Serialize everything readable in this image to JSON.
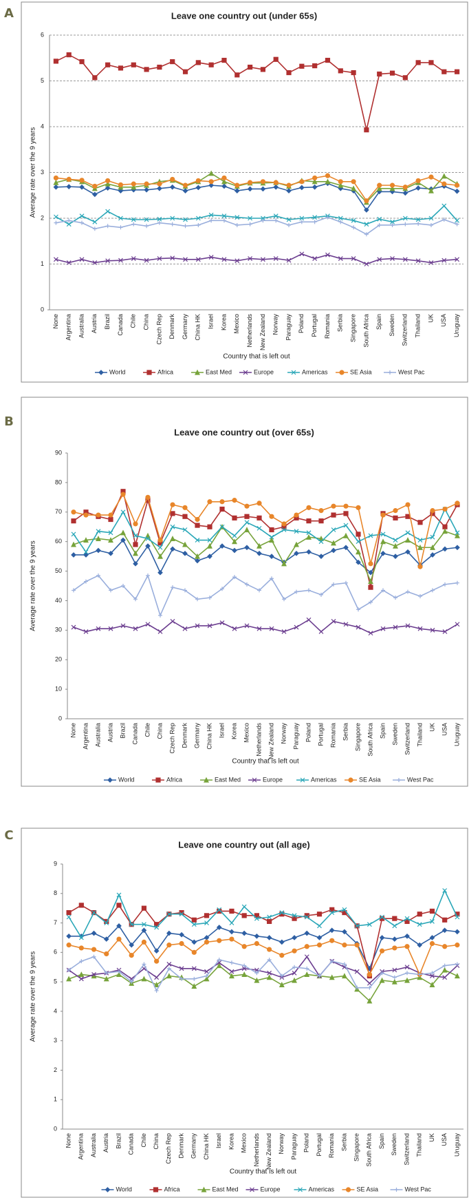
{
  "panels": [
    "A",
    "B",
    "C"
  ],
  "chart_data": [
    {
      "type": "line",
      "title": "Leave one country out (under 65s)",
      "x_label": "Country that is left out",
      "y_label": "Average rate over the 9 years",
      "categories": [
        "None",
        "Argentina",
        "Australia",
        "Austria",
        "Brazil",
        "Canada",
        "Chile",
        "China",
        "Czech Rep",
        "Denmark",
        "Germany",
        "China HK",
        "Israel",
        "Korea",
        "Mexico",
        "Netherlands",
        "New Zealand",
        "Norway",
        "Paraguay",
        "Poland",
        "Portugal",
        "Romania",
        "Serbia",
        "Singapore",
        "South Africa",
        "Spain",
        "Sweden",
        "Switzerland",
        "Thailand",
        "UK",
        "USA",
        "Uruguay"
      ],
      "ylim": [
        0,
        6
      ],
      "yticks": [
        0,
        1,
        2,
        3,
        4,
        5,
        6
      ],
      "grid": true,
      "legend": "bottom",
      "series": [
        {
          "name": "World",
          "color": "#2e5fa3",
          "values": [
            2.68,
            2.69,
            2.68,
            2.52,
            2.66,
            2.6,
            2.62,
            2.62,
            2.65,
            2.68,
            2.6,
            2.67,
            2.72,
            2.7,
            2.6,
            2.64,
            2.64,
            2.68,
            2.6,
            2.67,
            2.68,
            2.76,
            2.65,
            2.6,
            2.18,
            2.58,
            2.58,
            2.55,
            2.66,
            2.64,
            2.7,
            2.59
          ]
        },
        {
          "name": "Africa",
          "color": "#b03030",
          "values": [
            5.43,
            5.57,
            5.42,
            5.07,
            5.35,
            5.28,
            5.35,
            5.25,
            5.3,
            5.42,
            5.2,
            5.4,
            5.35,
            5.45,
            5.13,
            5.3,
            5.25,
            5.47,
            5.18,
            5.32,
            5.33,
            5.45,
            5.22,
            5.18,
            3.93,
            5.15,
            5.17,
            5.07,
            5.4,
            5.4,
            5.2,
            5.2
          ]
        },
        {
          "name": "East Med",
          "color": "#77a33b",
          "values": [
            2.78,
            2.85,
            2.8,
            2.65,
            2.75,
            2.68,
            2.68,
            2.72,
            2.8,
            2.83,
            2.7,
            2.8,
            2.98,
            2.8,
            2.7,
            2.77,
            2.77,
            2.78,
            2.7,
            2.82,
            2.8,
            2.8,
            2.72,
            2.65,
            2.35,
            2.65,
            2.65,
            2.65,
            2.78,
            2.6,
            2.92,
            2.75
          ]
        },
        {
          "name": "Europe",
          "color": "#6b3d8f",
          "values": [
            1.1,
            1.03,
            1.1,
            1.03,
            1.07,
            1.08,
            1.12,
            1.08,
            1.12,
            1.13,
            1.1,
            1.1,
            1.15,
            1.1,
            1.07,
            1.12,
            1.1,
            1.12,
            1.08,
            1.22,
            1.12,
            1.2,
            1.12,
            1.12,
            1.0,
            1.1,
            1.12,
            1.1,
            1.07,
            1.03,
            1.08,
            1.1
          ]
        },
        {
          "name": "Americas",
          "color": "#2aa7b8",
          "values": [
            2.03,
            1.87,
            2.05,
            1.92,
            2.15,
            2.0,
            1.97,
            1.97,
            1.98,
            2.0,
            1.97,
            2.0,
            2.07,
            2.05,
            2.02,
            2.0,
            2.0,
            2.05,
            1.97,
            2.0,
            2.02,
            2.05,
            2.0,
            1.95,
            1.87,
            1.98,
            1.92,
            2.0,
            1.97,
            2.0,
            2.27,
            1.95
          ]
        },
        {
          "name": "SE Asia",
          "color": "#e8862a",
          "values": [
            2.88,
            2.85,
            2.83,
            2.7,
            2.82,
            2.73,
            2.75,
            2.75,
            2.75,
            2.85,
            2.72,
            2.82,
            2.8,
            2.88,
            2.72,
            2.78,
            2.8,
            2.78,
            2.72,
            2.8,
            2.88,
            2.93,
            2.8,
            2.8,
            2.38,
            2.72,
            2.72,
            2.68,
            2.82,
            2.9,
            2.75,
            2.72
          ]
        },
        {
          "name": "West Pac",
          "color": "#99aedc",
          "values": [
            1.9,
            1.95,
            1.9,
            1.77,
            1.83,
            1.8,
            1.87,
            1.83,
            1.9,
            1.87,
            1.83,
            1.85,
            1.95,
            1.95,
            1.85,
            1.87,
            1.95,
            1.95,
            1.85,
            1.92,
            1.92,
            2.02,
            1.92,
            1.8,
            1.65,
            1.85,
            1.85,
            1.87,
            1.88,
            1.85,
            1.97,
            1.87
          ]
        }
      ]
    },
    {
      "type": "line",
      "title": "Leave one country out (over 65s)",
      "x_label": "Country that is left out",
      "y_label": "Average rate over the 9 years",
      "categories": [
        "None",
        "Argentina",
        "Australia",
        "Austria",
        "Brazil",
        "Canada",
        "Chile",
        "China",
        "Czech Rep",
        "Denmark",
        "Germany",
        "China HK",
        "Israel",
        "Korea",
        "Mexico",
        "Netherlands",
        "New Zealand",
        "Norway",
        "Paraguay",
        "Poland",
        "Portugal",
        "Romania",
        "Serbia",
        "Singapore",
        "South Africa",
        "Spain",
        "Sweden",
        "Switzerland",
        "Thailand",
        "UK",
        "USA",
        "Uruguay"
      ],
      "ylim": [
        0,
        90
      ],
      "yticks": [
        0,
        10,
        20,
        30,
        40,
        50,
        60,
        70,
        80,
        90
      ],
      "grid": false,
      "legend": "bottom",
      "series": [
        {
          "name": "World",
          "color": "#2e5fa3",
          "values": [
            55.5,
            55.5,
            57,
            56,
            60.5,
            52.5,
            58.5,
            49.5,
            57.5,
            56,
            53.5,
            55,
            58.5,
            57,
            58,
            56,
            55,
            53,
            56,
            56.5,
            55,
            57,
            58,
            53,
            49.5,
            56,
            55,
            56.5,
            52,
            55.5,
            57.5,
            58
          ]
        },
        {
          "name": "Africa",
          "color": "#b03030",
          "values": [
            67,
            70,
            68.5,
            67.5,
            77,
            59,
            74,
            59.5,
            69.5,
            68.5,
            65.5,
            65,
            71,
            68,
            68.5,
            68,
            64,
            65,
            68,
            67,
            67,
            69,
            69.5,
            62.5,
            44.5,
            69.5,
            68,
            68.5,
            66.5,
            69.5,
            65,
            72.5
          ]
        },
        {
          "name": "East Med",
          "color": "#77a33b",
          "values": [
            59,
            60.5,
            61,
            60.5,
            63,
            56,
            62,
            55,
            61,
            59,
            55,
            58.5,
            65,
            60,
            64,
            58.5,
            60.5,
            52.5,
            59,
            61.5,
            61,
            59.5,
            62,
            56.5,
            46.5,
            60,
            58.5,
            60.5,
            58,
            58,
            63.5,
            62
          ]
        },
        {
          "name": "Europe",
          "color": "#6b3d8f",
          "values": [
            31,
            29.5,
            30.5,
            30.5,
            31.5,
            30.5,
            32,
            29.5,
            33,
            30.5,
            31.5,
            31.5,
            32.5,
            30.5,
            31.5,
            30.5,
            30.5,
            29.5,
            31,
            33.5,
            29.5,
            33,
            32,
            31,
            29,
            30.5,
            31,
            31.5,
            30.5,
            30,
            29.5,
            32
          ]
        },
        {
          "name": "Americas",
          "color": "#2aa7b8",
          "values": [
            62.5,
            56.5,
            63.5,
            63,
            70,
            62,
            61,
            58,
            65,
            64,
            60.5,
            60.5,
            65,
            62,
            66.5,
            64.5,
            61.5,
            64,
            63.5,
            63,
            60,
            64,
            65.5,
            60,
            62,
            62.5,
            60.5,
            63,
            60.5,
            61.5,
            71,
            63
          ]
        },
        {
          "name": "SE Asia",
          "color": "#e8862a",
          "values": [
            70,
            69,
            69,
            69,
            76,
            66,
            75,
            60.5,
            72.5,
            71.5,
            67.5,
            73.5,
            73.5,
            74,
            72,
            73,
            68.5,
            66,
            69,
            71.5,
            70.5,
            72,
            72,
            71.5,
            52.5,
            69,
            70.5,
            72.5,
            51.5,
            70.5,
            71,
            73
          ]
        },
        {
          "name": "West Pac",
          "color": "#99aedc",
          "values": [
            43.5,
            46.5,
            48.5,
            43.5,
            45,
            40.5,
            48.5,
            35,
            44.5,
            43.5,
            40.5,
            41,
            44,
            48,
            45.5,
            43.5,
            47.5,
            40.5,
            43,
            43.5,
            42,
            45.5,
            46,
            37,
            39.5,
            43.5,
            41,
            43,
            41.5,
            43.5,
            45.5,
            46
          ]
        }
      ]
    },
    {
      "type": "line",
      "title": "Leave one country out (all age)",
      "x_label": "Country that is left out",
      "y_label": "Average rate over the 9 years",
      "categories": [
        "None",
        "Argentina",
        "Australia",
        "Austria",
        "Brazil",
        "Canada",
        "Chile",
        "China",
        "Czech Rep",
        "Denmark",
        "Germany",
        "China HK",
        "Israel",
        "Korea",
        "Mexico",
        "Netherlands",
        "New Zealand",
        "Norway",
        "Paraguay",
        "Poland",
        "Portugal",
        "Romania",
        "Serbia",
        "Singapore",
        "South Africa",
        "Spain",
        "Sweden",
        "Switzerland",
        "Thailand",
        "UK",
        "USA",
        "Uruguay"
      ],
      "ylim": [
        0,
        9
      ],
      "yticks": [
        0,
        1,
        2,
        3,
        4,
        5,
        6,
        7,
        8,
        9
      ],
      "grid": false,
      "legend": "bottom",
      "series": [
        {
          "name": "World",
          "color": "#2e5fa3",
          "values": [
            6.55,
            6.55,
            6.65,
            6.45,
            6.9,
            6.25,
            6.75,
            6.05,
            6.65,
            6.6,
            6.35,
            6.5,
            6.85,
            6.7,
            6.65,
            6.55,
            6.5,
            6.35,
            6.5,
            6.65,
            6.5,
            6.75,
            6.7,
            6.3,
            5.45,
            6.5,
            6.45,
            6.55,
            6.25,
            6.5,
            6.75,
            6.7
          ]
        },
        {
          "name": "Africa",
          "color": "#b03030",
          "values": [
            7.35,
            7.6,
            7.35,
            7.05,
            7.6,
            6.95,
            7.5,
            6.95,
            7.3,
            7.35,
            7.1,
            7.25,
            7.4,
            7.4,
            7.25,
            7.25,
            7.05,
            7.3,
            7.15,
            7.25,
            7.3,
            7.45,
            7.35,
            6.9,
            5.2,
            7.15,
            7.15,
            7.05,
            7.3,
            7.4,
            7.1,
            7.3
          ]
        },
        {
          "name": "East Med",
          "color": "#77a33b",
          "values": [
            5.1,
            5.25,
            5.2,
            5.1,
            5.25,
            4.95,
            5.1,
            4.9,
            5.2,
            5.15,
            4.85,
            5.1,
            5.55,
            5.2,
            5.25,
            5.05,
            5.15,
            4.9,
            5.05,
            5.25,
            5.2,
            5.15,
            5.2,
            4.75,
            4.35,
            5.05,
            5.0,
            5.05,
            5.15,
            4.9,
            5.4,
            5.2
          ]
        },
        {
          "name": "Europe",
          "color": "#6b3d8f",
          "values": [
            5.4,
            5.1,
            5.25,
            5.3,
            5.4,
            5.1,
            5.45,
            5.15,
            5.6,
            5.45,
            5.45,
            5.35,
            5.65,
            5.35,
            5.45,
            5.4,
            5.3,
            5.15,
            5.3,
            5.85,
            5.2,
            5.7,
            5.5,
            5.35,
            4.95,
            5.35,
            5.4,
            5.5,
            5.3,
            5.2,
            5.15,
            5.55
          ]
        },
        {
          "name": "Americas",
          "color": "#2aa7b8",
          "values": [
            7.2,
            6.5,
            7.35,
            7.0,
            7.95,
            6.95,
            6.95,
            6.85,
            7.3,
            7.3,
            6.95,
            7.0,
            7.45,
            7.0,
            7.55,
            7.15,
            7.2,
            7.35,
            7.25,
            7.2,
            6.9,
            7.35,
            7.45,
            6.9,
            6.95,
            7.2,
            6.9,
            7.15,
            6.95,
            7.05,
            8.1,
            7.2
          ]
        },
        {
          "name": "SE Asia",
          "color": "#e8862a",
          "values": [
            6.25,
            6.15,
            6.1,
            5.95,
            6.45,
            5.9,
            6.35,
            5.7,
            6.25,
            6.3,
            6.0,
            6.35,
            6.4,
            6.45,
            6.2,
            6.3,
            6.1,
            5.9,
            6.05,
            6.2,
            6.25,
            6.4,
            6.25,
            6.25,
            5.25,
            6.05,
            6.15,
            6.2,
            5.25,
            6.3,
            6.2,
            6.25
          ]
        },
        {
          "name": "West Pac",
          "color": "#99aedc",
          "values": [
            5.4,
            5.7,
            5.85,
            5.3,
            5.35,
            5.0,
            5.6,
            4.7,
            5.45,
            5.1,
            5.1,
            5.2,
            5.75,
            5.65,
            5.55,
            5.3,
            5.75,
            5.2,
            5.5,
            5.45,
            5.2,
            5.7,
            5.6,
            4.8,
            4.8,
            5.3,
            5.15,
            5.3,
            5.25,
            5.3,
            5.55,
            5.6
          ]
        }
      ]
    }
  ]
}
